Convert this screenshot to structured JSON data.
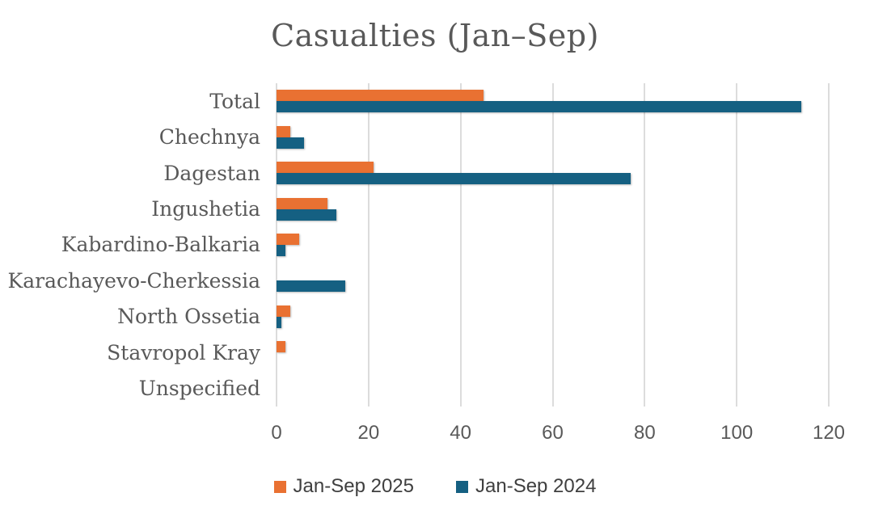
{
  "title": "Casualties (Jan–Sep)",
  "chart_data": {
    "type": "bar",
    "orientation": "horizontal",
    "title": "Casualties (Jan–Sep)",
    "xlabel": "",
    "ylabel": "",
    "categories": [
      "Total",
      "Chechnya",
      "Dagestan",
      "Ingushetia",
      "Kabardino-Balkaria",
      "Karachayevo-Cherkessia",
      "North Ossetia",
      "Stavropol Kray",
      "Unspecified"
    ],
    "series": [
      {
        "name": "Jan-Sep 2025",
        "color": "#E97132",
        "values": [
          45,
          3,
          21,
          11,
          5,
          0,
          3,
          2,
          0
        ]
      },
      {
        "name": "Jan-Sep 2024",
        "color": "#156082",
        "values": [
          114,
          6,
          77,
          13,
          2,
          15,
          1,
          0,
          0
        ]
      }
    ],
    "xlim": [
      0,
      120
    ],
    "xticks": [
      0,
      20,
      40,
      60,
      80,
      100,
      120
    ],
    "grid": true,
    "legend_position": "bottom"
  },
  "colors": {
    "series_2025": "#E97132",
    "series_2024": "#156082",
    "gridline": "#DCDCDC",
    "text": "#595959",
    "legend_text": "#3F3F3F",
    "background": "#FFFFFF"
  }
}
